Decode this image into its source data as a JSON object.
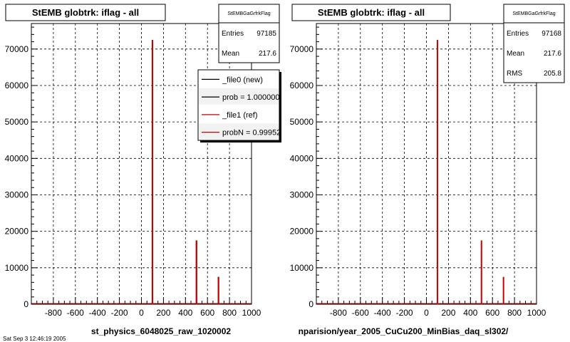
{
  "canvas_footer": "Sat Sep 3 12:46:19 2005",
  "chart_data": [
    {
      "type": "bar",
      "title": "StEMB globtrk: iflag - all",
      "xlabel": "st_physics_6048025_raw_1020002",
      "ylabel": "",
      "xlim": [
        -1000,
        1000
      ],
      "ylim": [
        0,
        77000
      ],
      "xticks": [
        -800,
        -600,
        -400,
        -200,
        0,
        200,
        400,
        600,
        800,
        1000
      ],
      "yticks": [
        0,
        10000,
        20000,
        30000,
        40000,
        50000,
        60000,
        70000
      ],
      "ytick_labels": [
        "0",
        "10000",
        "20000",
        "30000",
        "40000",
        "50000",
        "60000",
        "70000"
      ],
      "grid": true,
      "stats": {
        "name": "StEMBGaGrfrkFlag",
        "rows": [
          {
            "label": "Entries",
            "value": "97185"
          },
          {
            "label": "Mean",
            "value": "217.6"
          }
        ]
      },
      "legend": {
        "placement": "top-right",
        "entries": [
          {
            "label": "_file0 (new)",
            "color": "#000000"
          },
          {
            "label": "prob = 1.000000",
            "color": "#000000"
          },
          {
            "label": "_file1 (ref)",
            "color": "#cc0000"
          },
          {
            "label": "probN = 0.99952",
            "color": "#cc0000"
          }
        ]
      },
      "series": [
        {
          "color": "#000000",
          "x": [
            100,
            500,
            700
          ],
          "values": [
            72500,
            17500,
            7500
          ]
        },
        {
          "color": "#cc0000",
          "x": [
            100,
            500,
            700
          ],
          "values": [
            72500,
            17500,
            7500
          ]
        }
      ]
    },
    {
      "type": "bar",
      "title": "StEMB globtrk: iflag - all",
      "xlabel": "nparision/year_2005_CuCu200_MinBias_daq_sl302/",
      "ylabel": "",
      "xlim": [
        -1000,
        1000
      ],
      "ylim": [
        0,
        77000
      ],
      "xticks": [
        -800,
        -600,
        -400,
        -200,
        0,
        200,
        400,
        600,
        800,
        1000
      ],
      "yticks": [
        0,
        10000,
        20000,
        30000,
        40000,
        50000,
        60000,
        70000
      ],
      "ytick_labels": [
        "0",
        "10000",
        "20000",
        "30000",
        "40000",
        "50000",
        "60000",
        "70000"
      ],
      "grid": true,
      "stats": {
        "name": "StEMBGaGrfrkFlag",
        "rows": [
          {
            "label": "Entries",
            "value": "97168"
          },
          {
            "label": "Mean",
            "value": "217.6"
          },
          {
            "label": "RMS",
            "value": "205.8"
          }
        ]
      },
      "series": [
        {
          "color": "#cc0000",
          "x": [
            100,
            500,
            700
          ],
          "values": [
            72500,
            17500,
            7500
          ]
        }
      ]
    }
  ]
}
